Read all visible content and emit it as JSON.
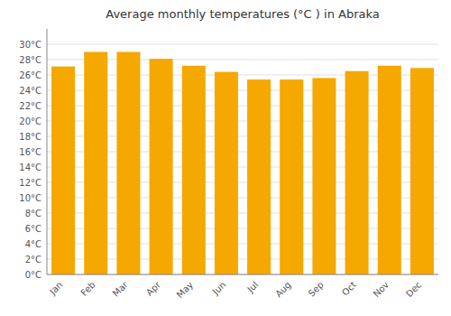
{
  "chart_data": {
    "type": "bar",
    "title": "Average monthly temperatures (°C ) in Abraka",
    "categories": [
      "Jan",
      "Feb",
      "Mar",
      "Apr",
      "May",
      "Jun",
      "Jul",
      "Aug",
      "Sep",
      "Oct",
      "Nov",
      "Dec"
    ],
    "values": [
      27.1,
      29.0,
      29.0,
      28.1,
      27.2,
      26.4,
      25.4,
      25.4,
      25.6,
      26.5,
      27.2,
      26.9
    ],
    "color": "#F5A800",
    "ylim": [
      0,
      32
    ],
    "yticks": [
      {
        "value": 0,
        "label": "0°C"
      },
      {
        "value": 2,
        "label": "2°C"
      },
      {
        "value": 4,
        "label": "4°C"
      },
      {
        "value": 6,
        "label": "6°C"
      },
      {
        "value": 8,
        "label": "8°C"
      },
      {
        "value": 10,
        "label": "10°C"
      },
      {
        "value": 12,
        "label": "12°C"
      },
      {
        "value": 14,
        "label": "14°C"
      },
      {
        "value": 16,
        "label": "16°C"
      },
      {
        "value": 18,
        "label": "18°C"
      },
      {
        "value": 20,
        "label": "20°C"
      },
      {
        "value": 22,
        "label": "22°C"
      },
      {
        "value": 24,
        "label": "24°C"
      },
      {
        "value": 26,
        "label": "26°C"
      },
      {
        "value": 28,
        "label": "28°C"
      },
      {
        "value": 30,
        "label": "30°C"
      }
    ],
    "grid": true
  }
}
